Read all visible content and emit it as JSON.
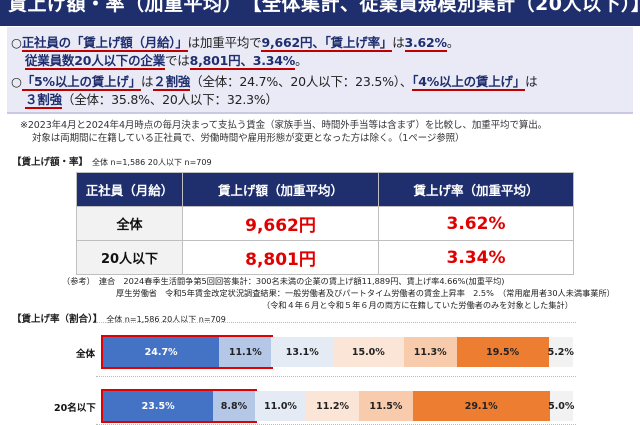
{
  "title": "賃上げ額・率（加重平均）　【全体集計、従業員規模別集計（20人以下）】",
  "summary": {
    "line1_a": "○",
    "line1_b": "正社員の「賃上げ額（月給）」",
    "line1_c": "は加重平均で",
    "line1_d": "9,662円",
    "line1_e": "、「賃上げ率」",
    "line1_f": "は",
    "line1_g": "3.62%",
    "line1_h": "。",
    "line2_a": "従業員数20人以下の企業",
    "line2_b": "では",
    "line2_c": "8,801円、3.34%",
    "line2_d": "。",
    "line3_a": "○",
    "line3_b": "「5%以上の賃上げ」",
    "line3_c": "は",
    "line3_d": "２割強",
    "line3_e": "（全体：24.7%、20人以下：23.5%）、",
    "line3_f": "「4%以上の賃上げ」",
    "line3_g": "は",
    "line4_a": "３割強",
    "line4_b": "（全体：35.8%、20人以下：32.3%）"
  },
  "notes": [
    "※2023年4月と2024年4月時点の毎月決まって支払う賃金（家族手当、時間外手当等は含まず）を比較し、加重平均で算出。",
    "対象は両期間に在籍している正社員で、労働時間や雇用形態が変更となった方は除く。（1ページ参照）"
  ],
  "section1": {
    "label": "【賃上げ額・率】",
    "sub": "全体 n=1,586  20人以下 n=709"
  },
  "table": {
    "headers": [
      "正社員（月給）",
      "賃上げ額（加重平均）",
      "賃上げ率（加重平均）"
    ],
    "rows": [
      {
        "label": "全体",
        "amount": "9,662円",
        "rate": "3.62%"
      },
      {
        "label": "20人以下",
        "amount": "8,801円",
        "rate": "3.34%"
      }
    ]
  },
  "reference": {
    "line1": "（参考）　連合　2024春季生活闘争第5回回答集計：300名未満の企業の賃上げ額11,889円、賃上げ率4.66%(加重平均)",
    "line2": "厚生労働省　令和5年賃金改定状況調査結果：一般労働者及びパートタイム労働者の賃金上昇率　2.5%　（常用雇用者30人未満事業所）",
    "line3": "（令和４年６月と令和５年６月の両方に在籍していた労働者のみを対象とした集計）"
  },
  "section2": {
    "label": "【賃上げ率（割合）】",
    "sub": "全体 n=1,586  20人以下 n=709"
  },
  "colors": {
    "navy": "#1f2f6e",
    "seg": [
      "#4472c4",
      "#b4c7e7",
      "#e4ebf5",
      "#fbe5d6",
      "#f8cbad",
      "#ed7d31",
      "#f2f2f2"
    ],
    "highlight": "#e00000"
  },
  "bars": [
    {
      "label": "全体",
      "values": [
        24.7,
        11.1,
        13.1,
        15.0,
        11.3,
        19.5,
        5.2
      ],
      "texts": [
        "24.7%",
        "11.1%",
        "13.1%",
        "15.0%",
        "11.3%",
        "19.5%",
        "5.2%"
      ]
    },
    {
      "label": "20名以下",
      "values": [
        23.5,
        8.8,
        11.0,
        11.2,
        11.5,
        29.1,
        5.0
      ],
      "texts": [
        "23.5%",
        "8.8%",
        "11.0%",
        "11.2%",
        "11.5%",
        "29.1%",
        "5.0%"
      ]
    }
  ]
}
